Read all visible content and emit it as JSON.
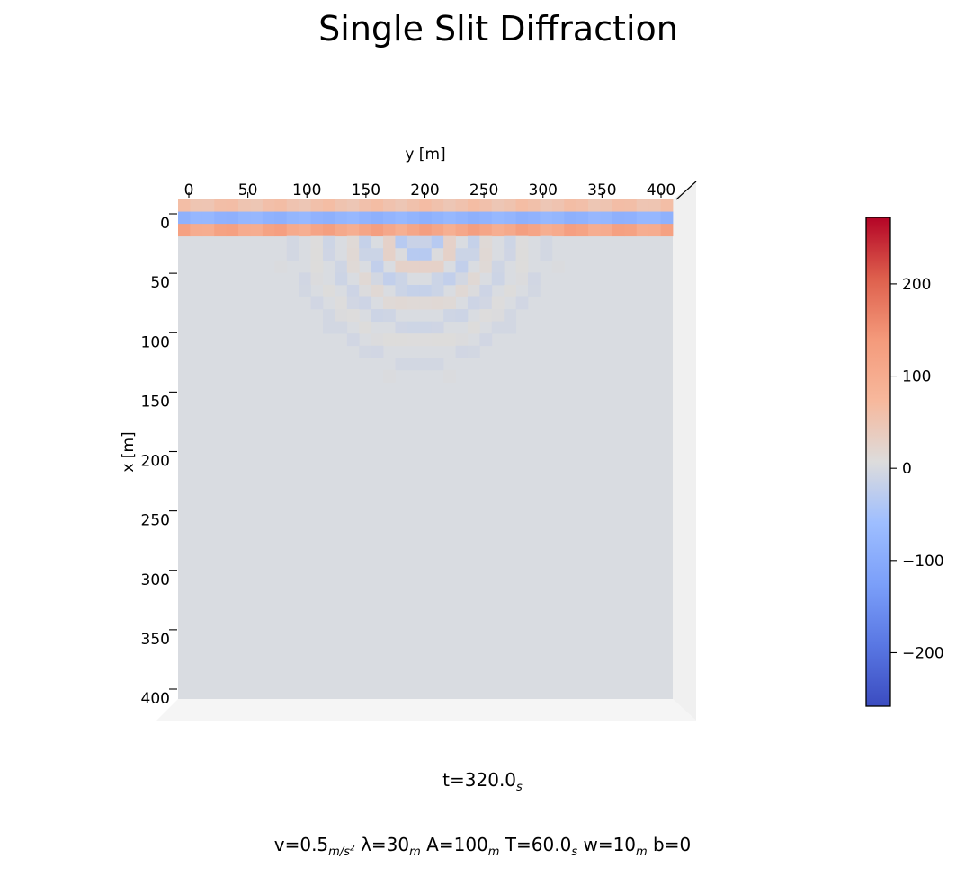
{
  "chart_data": {
    "type": "heatmap",
    "title": "Single Slit Diffraction",
    "xlabel": "y [m]",
    "ylabel": "x [m]",
    "x_ticks": [
      "0",
      "50",
      "100",
      "150",
      "200",
      "250",
      "300",
      "350",
      "400"
    ],
    "y_ticks": [
      "0",
      "50",
      "100",
      "150",
      "200",
      "250",
      "300",
      "350",
      "400"
    ],
    "x_range": [
      0,
      410
    ],
    "y_range": [
      0,
      410
    ],
    "colormap": "coolwarm",
    "colorbar": {
      "ticks": [
        "200",
        "100",
        "0",
        "−100",
        "−200"
      ],
      "tick_values": [
        200,
        100,
        0,
        -100,
        -200
      ],
      "range": [
        -258,
        272
      ]
    },
    "colors": {
      "low": "#3b4cc0",
      "mid": "#dddcdc",
      "high": "#b40426",
      "background": "#d9dce1"
    },
    "field_model": {
      "slit_center_y": 200,
      "barrier_x": 30,
      "wavelength": 30,
      "amplitude": 100,
      "cell_size": 10
    },
    "annotation_time": {
      "label": "t=320.0",
      "unit": "s"
    },
    "annotation_params": [
      {
        "text": "v=0.5",
        "sub": "m/s",
        "sup": "2"
      },
      {
        "text": " λ=30",
        "sub": "m"
      },
      {
        "text": " A=100",
        "sub": "m"
      },
      {
        "text": " T=60.0",
        "sub": "s"
      },
      {
        "text": " w=10",
        "sub": "m"
      },
      {
        "text": " b=0"
      }
    ]
  }
}
